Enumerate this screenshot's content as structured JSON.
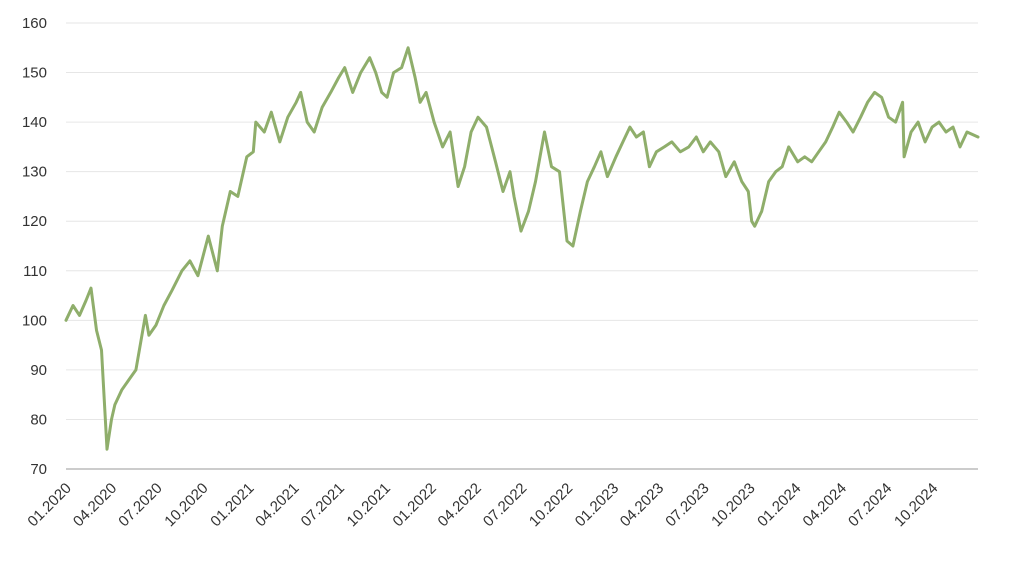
{
  "chart_data": {
    "type": "line",
    "title": "",
    "xlabel": "",
    "ylabel": "",
    "grid": true,
    "legend": "none",
    "ylim": [
      70,
      160
    ],
    "yticks": [
      "70",
      "80",
      "90",
      "100",
      "110",
      "120",
      "130",
      "140",
      "150",
      "160"
    ],
    "xlim": [
      "2020-01-01",
      "2024-12-31"
    ],
    "xticks": [
      {
        "label": "01.2020",
        "date": "2020-01-01"
      },
      {
        "label": "04.2020",
        "date": "2020-04-01"
      },
      {
        "label": "07.2020",
        "date": "2020-07-01"
      },
      {
        "label": "10.2020",
        "date": "2020-10-01"
      },
      {
        "label": "01.2021",
        "date": "2021-01-01"
      },
      {
        "label": "04.2021",
        "date": "2021-04-01"
      },
      {
        "label": "07.2021",
        "date": "2021-07-01"
      },
      {
        "label": "10.2021",
        "date": "2021-10-01"
      },
      {
        "label": "01.2022",
        "date": "2022-01-01"
      },
      {
        "label": "04.2022",
        "date": "2022-04-01"
      },
      {
        "label": "07.2022",
        "date": "2022-07-01"
      },
      {
        "label": "10.2022",
        "date": "2022-10-01"
      },
      {
        "label": "01.2023",
        "date": "2023-01-01"
      },
      {
        "label": "04.2023",
        "date": "2023-04-01"
      },
      {
        "label": "07.2023",
        "date": "2023-07-01"
      },
      {
        "label": "10.2023",
        "date": "2023-10-01"
      },
      {
        "label": "01.2024",
        "date": "2024-01-01"
      },
      {
        "label": "04.2024",
        "date": "2024-04-01"
      },
      {
        "label": "07.2024",
        "date": "2024-07-01"
      },
      {
        "label": "10.2024",
        "date": "2024-10-01"
      }
    ],
    "series": [
      {
        "color": "#8fae6b",
        "points": [
          [
            "2020-01-01",
            100
          ],
          [
            "2020-01-15",
            103
          ],
          [
            "2020-01-28",
            101
          ],
          [
            "2020-02-10",
            104
          ],
          [
            "2020-02-20",
            106.5
          ],
          [
            "2020-03-02",
            98
          ],
          [
            "2020-03-12",
            94
          ],
          [
            "2020-03-23",
            74
          ],
          [
            "2020-04-01",
            80
          ],
          [
            "2020-04-08",
            83
          ],
          [
            "2020-04-22",
            86
          ],
          [
            "2020-05-06",
            88
          ],
          [
            "2020-05-20",
            90
          ],
          [
            "2020-06-08",
            101
          ],
          [
            "2020-06-15",
            97
          ],
          [
            "2020-06-29",
            99
          ],
          [
            "2020-07-15",
            103
          ],
          [
            "2020-07-31",
            106
          ],
          [
            "2020-08-20",
            110
          ],
          [
            "2020-09-05",
            112
          ],
          [
            "2020-09-21",
            109
          ],
          [
            "2020-10-12",
            117
          ],
          [
            "2020-10-30",
            110
          ],
          [
            "2020-11-09",
            119
          ],
          [
            "2020-11-25",
            126
          ],
          [
            "2020-12-10",
            125
          ],
          [
            "2020-12-28",
            133
          ],
          [
            "2021-01-10",
            134
          ],
          [
            "2021-01-15",
            140
          ],
          [
            "2021-02-01",
            138
          ],
          [
            "2021-02-15",
            142
          ],
          [
            "2021-03-04",
            136
          ],
          [
            "2021-03-20",
            141
          ],
          [
            "2021-04-06",
            144
          ],
          [
            "2021-04-15",
            146
          ],
          [
            "2021-04-28",
            140
          ],
          [
            "2021-05-12",
            138
          ],
          [
            "2021-05-28",
            143
          ],
          [
            "2021-06-14",
            146
          ],
          [
            "2021-06-30",
            149
          ],
          [
            "2021-07-12",
            151
          ],
          [
            "2021-07-28",
            146
          ],
          [
            "2021-08-13",
            150
          ],
          [
            "2021-08-31",
            153
          ],
          [
            "2021-09-12",
            150
          ],
          [
            "2021-09-24",
            146
          ],
          [
            "2021-10-05",
            145
          ],
          [
            "2021-10-18",
            150
          ],
          [
            "2021-11-03",
            151
          ],
          [
            "2021-11-16",
            155
          ],
          [
            "2021-11-30",
            149
          ],
          [
            "2021-12-10",
            144
          ],
          [
            "2021-12-22",
            146
          ],
          [
            "2022-01-07",
            140
          ],
          [
            "2022-01-24",
            135
          ],
          [
            "2022-02-08",
            138
          ],
          [
            "2022-02-24",
            127
          ],
          [
            "2022-03-09",
            131
          ],
          [
            "2022-03-22",
            138
          ],
          [
            "2022-04-05",
            141
          ],
          [
            "2022-04-22",
            139
          ],
          [
            "2022-05-10",
            132
          ],
          [
            "2022-05-25",
            126
          ],
          [
            "2022-06-08",
            130
          ],
          [
            "2022-06-16",
            125
          ],
          [
            "2022-06-30",
            118
          ],
          [
            "2022-07-15",
            122
          ],
          [
            "2022-07-29",
            128
          ],
          [
            "2022-08-16",
            138
          ],
          [
            "2022-08-30",
            131
          ],
          [
            "2022-09-15",
            130
          ],
          [
            "2022-09-30",
            116
          ],
          [
            "2022-10-12",
            115
          ],
          [
            "2022-10-27",
            122
          ],
          [
            "2022-11-10",
            128
          ],
          [
            "2022-11-24",
            131
          ],
          [
            "2022-12-07",
            134
          ],
          [
            "2022-12-20",
            129
          ],
          [
            "2023-01-06",
            133
          ],
          [
            "2023-01-20",
            136
          ],
          [
            "2023-02-03",
            139
          ],
          [
            "2023-02-16",
            137
          ],
          [
            "2023-03-02",
            138
          ],
          [
            "2023-03-14",
            131
          ],
          [
            "2023-03-28",
            134
          ],
          [
            "2023-04-13",
            135
          ],
          [
            "2023-04-28",
            136
          ],
          [
            "2023-05-15",
            134
          ],
          [
            "2023-06-01",
            135
          ],
          [
            "2023-06-16",
            137
          ],
          [
            "2023-06-30",
            134
          ],
          [
            "2023-07-14",
            136
          ],
          [
            "2023-07-31",
            134
          ],
          [
            "2023-08-14",
            129
          ],
          [
            "2023-08-31",
            132
          ],
          [
            "2023-09-15",
            128
          ],
          [
            "2023-09-28",
            126
          ],
          [
            "2023-10-05",
            120
          ],
          [
            "2023-10-11",
            119
          ],
          [
            "2023-10-25",
            122
          ],
          [
            "2023-11-08",
            128
          ],
          [
            "2023-11-22",
            130
          ],
          [
            "2023-12-05",
            131
          ],
          [
            "2023-12-18",
            135
          ],
          [
            "2024-01-05",
            132
          ],
          [
            "2024-01-19",
            133
          ],
          [
            "2024-02-02",
            132
          ],
          [
            "2024-02-16",
            134
          ],
          [
            "2024-03-01",
            136
          ],
          [
            "2024-03-15",
            139
          ],
          [
            "2024-03-28",
            142
          ],
          [
            "2024-04-12",
            140
          ],
          [
            "2024-04-25",
            138
          ],
          [
            "2024-05-10",
            141
          ],
          [
            "2024-05-24",
            144
          ],
          [
            "2024-06-07",
            146
          ],
          [
            "2024-06-21",
            145
          ],
          [
            "2024-07-05",
            141
          ],
          [
            "2024-07-19",
            140
          ],
          [
            "2024-08-02",
            144
          ],
          [
            "2024-08-05",
            133
          ],
          [
            "2024-08-19",
            138
          ],
          [
            "2024-09-02",
            140
          ],
          [
            "2024-09-16",
            136
          ],
          [
            "2024-09-30",
            139
          ],
          [
            "2024-10-14",
            140
          ],
          [
            "2024-10-28",
            138
          ],
          [
            "2024-11-11",
            139
          ],
          [
            "2024-11-25",
            135
          ],
          [
            "2024-12-09",
            138
          ],
          [
            "2024-12-31",
            137
          ]
        ]
      }
    ]
  }
}
